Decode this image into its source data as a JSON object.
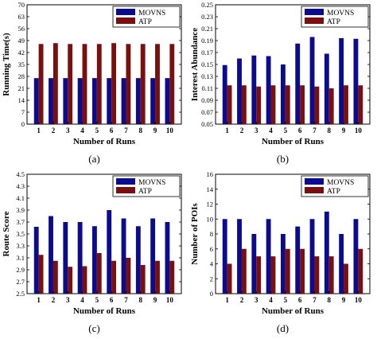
{
  "colors": {
    "series1": "#0b0b8f",
    "series2": "#7a0f0f",
    "axis": "#000000",
    "background": "#ffffff"
  },
  "chart_data": [
    {
      "id": "a",
      "type": "bar",
      "subfigure_label": "(a)",
      "xlabel": "Number of Runs",
      "ylabel": "Running Time(s)",
      "categories": [
        "1",
        "2",
        "3",
        "4",
        "5",
        "6",
        "7",
        "8",
        "9",
        "10"
      ],
      "ylim": [
        0,
        70
      ],
      "yticks": [
        "0",
        "7",
        "14",
        "21",
        "28",
        "35",
        "42",
        "49",
        "56",
        "63",
        "70"
      ],
      "legend_position": "top-right",
      "series": [
        {
          "name": "MOVNS",
          "values": [
            27,
            27,
            27,
            27,
            27,
            27,
            27,
            27,
            27,
            27
          ]
        },
        {
          "name": "ATP",
          "values": [
            47,
            47.5,
            47,
            47,
            47,
            47.5,
            47,
            47,
            47,
            47
          ]
        }
      ]
    },
    {
      "id": "b",
      "type": "bar",
      "subfigure_label": "(b)",
      "xlabel": "Number of Runs",
      "ylabel": "Interest Abundance",
      "categories": [
        "1",
        "2",
        "3",
        "4",
        "5",
        "6",
        "7",
        "8",
        "9",
        "10"
      ],
      "ylim": [
        0.05,
        0.25
      ],
      "yticks": [
        "0.05",
        "0.07",
        "0.09",
        "0.11",
        "0.13",
        "0.15",
        "0.17",
        "0.19",
        "0.21",
        "0.23",
        "0.25"
      ],
      "legend_position": "top-right",
      "series": [
        {
          "name": "MOVNS",
          "values": [
            0.149,
            0.16,
            0.165,
            0.164,
            0.15,
            0.185,
            0.196,
            0.168,
            0.194,
            0.193
          ]
        },
        {
          "name": "ATP",
          "values": [
            0.115,
            0.115,
            0.113,
            0.115,
            0.115,
            0.115,
            0.113,
            0.11,
            0.115,
            0.115
          ]
        }
      ]
    },
    {
      "id": "c",
      "type": "bar",
      "subfigure_label": "(c)",
      "xlabel": "Number of Runs",
      "ylabel": "Route Score",
      "categories": [
        "1",
        "2",
        "3",
        "4",
        "5",
        "6",
        "7",
        "8",
        "9",
        "10"
      ],
      "ylim": [
        2.5,
        4.5
      ],
      "yticks": [
        "2.5",
        "2.7",
        "2.9",
        "3.1",
        "3.3",
        "3.5",
        "3.7",
        "3.9",
        "4.1",
        "4.3",
        "4.5"
      ],
      "legend_position": "top-right",
      "series": [
        {
          "name": "MOVNS",
          "values": [
            3.62,
            3.8,
            3.7,
            3.7,
            3.63,
            3.9,
            3.76,
            3.63,
            3.76,
            3.7
          ]
        },
        {
          "name": "ATP",
          "values": [
            3.15,
            3.05,
            2.95,
            2.96,
            3.18,
            3.05,
            3.1,
            2.98,
            3.05,
            3.05
          ]
        }
      ]
    },
    {
      "id": "d",
      "type": "bar",
      "subfigure_label": "(d)",
      "xlabel": "Number of Runs",
      "ylabel": "Number of POIs",
      "categories": [
        "1",
        "2",
        "3",
        "4",
        "5",
        "6",
        "7",
        "8",
        "9",
        "10"
      ],
      "ylim": [
        0,
        16
      ],
      "yticks": [
        "0",
        "2",
        "4",
        "6",
        "8",
        "10",
        "12",
        "14",
        "16"
      ],
      "legend_position": "top-right",
      "series": [
        {
          "name": "MOVNS",
          "values": [
            10,
            10,
            8,
            10,
            8,
            9,
            10,
            11,
            8,
            10
          ]
        },
        {
          "name": "ATP",
          "values": [
            4,
            6,
            5,
            5,
            6,
            6,
            5,
            5,
            4,
            6
          ]
        }
      ]
    }
  ]
}
